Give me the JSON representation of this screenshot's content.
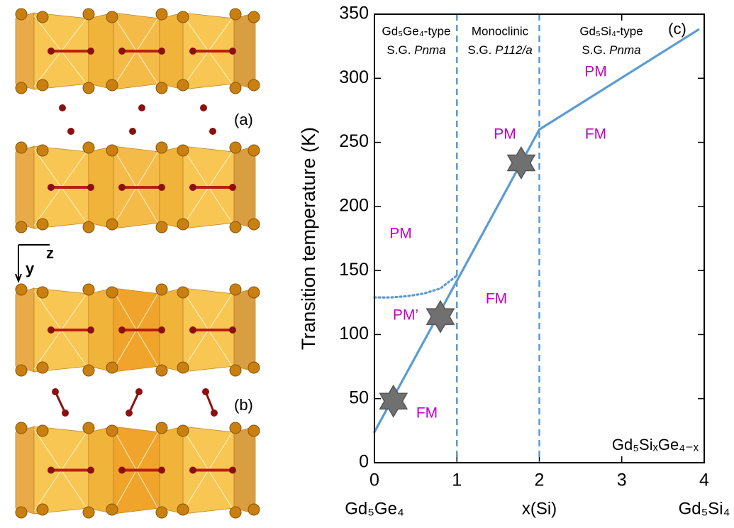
{
  "figure_labels": {
    "panel_a": "(a)",
    "panel_b": "(b)",
    "axis_y": "y",
    "axis_z": "z"
  },
  "chart_data": {
    "type": "line",
    "ylabel": "Transition temperature (K)",
    "xlabel": "x(Si)",
    "x_end_labels": [
      "Gd₅Ge₄",
      "Gd₅Si₄"
    ],
    "panel_label": "(c)",
    "formula": "Gd₅SiₓGe₄₋ₓ",
    "xlim": [
      0,
      4
    ],
    "ylim": [
      0,
      350
    ],
    "xticks": [
      0,
      1,
      2,
      3,
      4
    ],
    "yticks": [
      0,
      50,
      100,
      150,
      200,
      250,
      300,
      350
    ],
    "region_headers": [
      {
        "title": "Gd₅Ge₄-type",
        "prefix": "S.G.",
        "group": "Pnma"
      },
      {
        "title": "Monoclinic",
        "prefix": "S.G.",
        "group": "P112/a"
      },
      {
        "title": "Gd₅Si₄-type",
        "prefix": "S.G.",
        "group": "Pnma"
      }
    ],
    "phase_labels": [
      "PM",
      "PM’",
      "FM",
      "FM",
      "PM",
      "PM",
      "FM"
    ],
    "label_color": "#c000c0",
    "boundaries": [
      1,
      2
    ],
    "boundary_color": "#5b9bd5",
    "baseline": [
      0
    ],
    "baseline_color": "#c040c0",
    "series": [
      {
        "x": [
          0,
          1,
          2,
          3.93
        ],
        "values": [
          24,
          142,
          260,
          338
        ],
        "color": "#5b9bd5",
        "style": "solid"
      },
      {
        "x": [
          0,
          0.2,
          0.4,
          0.6,
          0.8,
          1
        ],
        "values": [
          129,
          129,
          130,
          132,
          136,
          146
        ],
        "color": "#5b9bd5",
        "style": "dotted"
      },
      {
        "x": [
          0.23,
          0.8,
          1.78
        ],
        "values": [
          48,
          114,
          234
        ],
        "color": "#707070",
        "style": "star"
      }
    ]
  }
}
